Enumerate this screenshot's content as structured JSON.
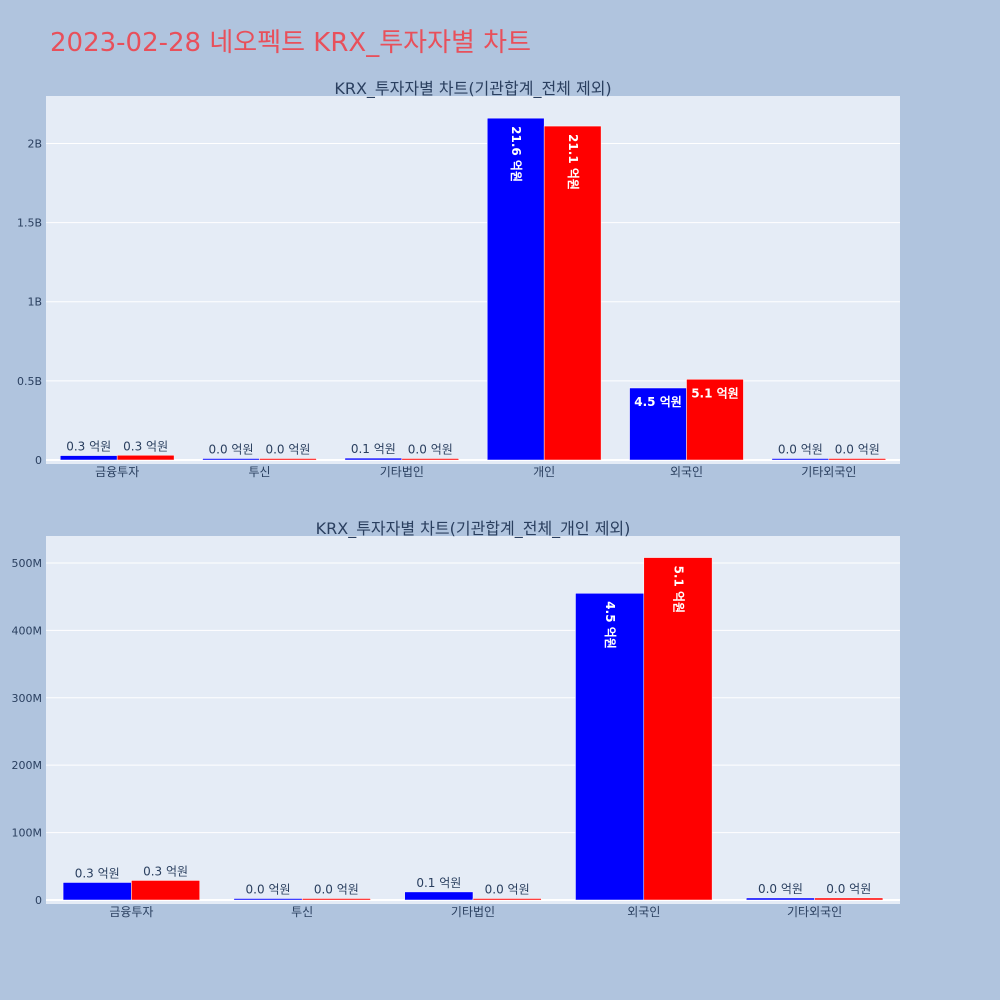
{
  "page_title": "2023-02-28 네오펙트 KRX_투자자별 차트",
  "colors": {
    "page_background": "#b0c4de",
    "plot_background": "#e5ecf6",
    "title_color": "#e8505b",
    "series_1": "#0000ff",
    "series_2": "#ff0000",
    "grid": "#ffffff",
    "text": "#2a3f5f"
  },
  "chart_data": [
    {
      "type": "bar",
      "title": "KRX_투자자별 차트(기관합계_전체 제외)",
      "categories": [
        "금융투자",
        "투신",
        "기타법인",
        "개인",
        "외국인",
        "기타외국인"
      ],
      "series": [
        {
          "values": [
            28000000,
            1500000,
            12000000,
            2160000000,
            455000000,
            2000000
          ],
          "labels": [
            "0.3 억원",
            "0.0 억원",
            "0.1 억원",
            "21.6 억원",
            "4.5 억원",
            "0.0 억원"
          ]
        },
        {
          "values": [
            30000000,
            1000000,
            500000,
            2110000000,
            510000000,
            2000000
          ],
          "labels": [
            "0.3 억원",
            "0.0 억원",
            "0.0 억원",
            "21.1 억원",
            "5.1 억원",
            "0.0 억원"
          ]
        }
      ],
      "ylim": [
        0,
        2300000000
      ],
      "yticks": [
        0,
        500000000,
        1000000000,
        1500000000,
        2000000000
      ],
      "ytick_labels": [
        "0",
        "0.5B",
        "1B",
        "1.5B",
        "2B"
      ],
      "grid": true
    },
    {
      "type": "bar",
      "title": "KRX_투자자별 차트(기관합계_전체_개인 제외)",
      "categories": [
        "금융투자",
        "투신",
        "기타법인",
        "외국인",
        "기타외국인"
      ],
      "series": [
        {
          "values": [
            26000000,
            1500000,
            12000000,
            455000000,
            3000000
          ],
          "labels": [
            "0.3 억원",
            "0.0 억원",
            "0.1 억원",
            "4.5 억원",
            "0.0 억원"
          ]
        },
        {
          "values": [
            29000000,
            2000000,
            500000,
            508000000,
            3000000
          ],
          "labels": [
            "0.3 억원",
            "0.0 억원",
            "0.0 억원",
            "5.1 억원",
            "0.0 억원"
          ]
        }
      ],
      "ylim": [
        0,
        540000000
      ],
      "yticks": [
        0,
        100000000,
        200000000,
        300000000,
        400000000,
        500000000
      ],
      "ytick_labels": [
        "0",
        "100M",
        "200M",
        "300M",
        "400M",
        "500M"
      ],
      "grid": true
    }
  ]
}
